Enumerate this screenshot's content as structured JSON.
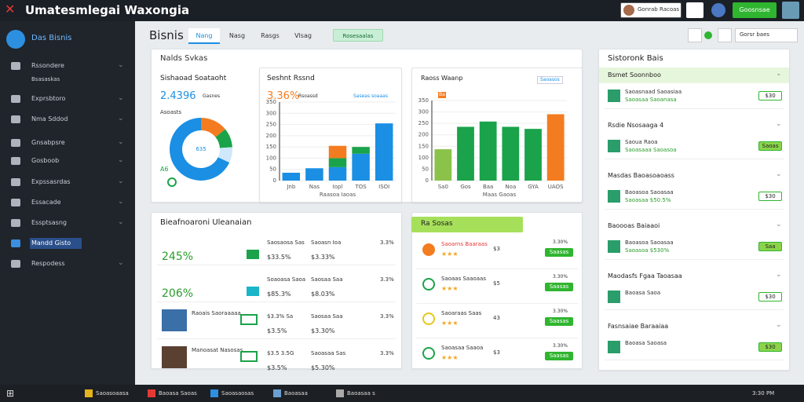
{
  "topbar": {
    "title": "Umatesmlegai Waxongia",
    "user": "Gonrab Racoas",
    "button": "Goosnsae"
  },
  "sidebar": {
    "brand": "Das Bisnis",
    "items": [
      "Rssondere",
      "Bsasaskas",
      "Exprsbtoro",
      "Nma Sddod",
      "Gnsabpsre",
      "Gosboob",
      "Expssasrdas",
      "Essacade",
      "Essptsasng",
      "Mandd Gisto",
      "Respodess"
    ],
    "active": 9
  },
  "header": {
    "title": "Bisnis",
    "tabs": [
      "Nang",
      "Nasg",
      "Rasgs",
      "Vlsag"
    ],
    "filter": "Rosesaalas",
    "search": "Gorsr baes"
  },
  "overview": {
    "title": "Nalds Svkas",
    "donut": {
      "title": "Sishaoad Soataoht",
      "value": "2.4396",
      "sub": "Gasnes",
      "label": "Asoasts",
      "center": "635",
      "corner": "A6",
      "values": [
        68,
        14,
        10,
        8
      ],
      "colors": [
        "#1a8fe3",
        "#f47c20",
        "#1aa34a",
        "#cfe8fb"
      ]
    },
    "bars": {
      "type": "bar",
      "title": "Seshnt Rssnd",
      "value": "3.36%",
      "sub": "Rsoassd",
      "link": "Saseas soaaas",
      "categories": [
        "Jnb",
        "Nas",
        "Iopl",
        "TOS",
        "ISOI"
      ],
      "xlabel": "Raasoa Iaoas",
      "series": [
        {
          "color": "#1a8fe3",
          "values": [
            35,
            55,
            60,
            120,
            255
          ]
        },
        {
          "color": "#1aa34a",
          "values": [
            0,
            0,
            40,
            30,
            0
          ]
        },
        {
          "color": "#f47c20",
          "values": [
            0,
            0,
            55,
            0,
            0
          ]
        }
      ],
      "ylim": [
        0,
        350
      ],
      "yticks": [
        0,
        50,
        100,
        150,
        200,
        250,
        300,
        350
      ]
    },
    "bars2": {
      "type": "bar",
      "title": "Raoss Waanp",
      "link": "Saoasos",
      "tag": "Ba",
      "categories": [
        "Sa0",
        "Gos",
        "Baa",
        "Noa",
        "GYA",
        "UAOS"
      ],
      "xlabel": "Maas Gaoas",
      "values": [
        137,
        235,
        258,
        235,
        226,
        290
      ],
      "colors": [
        "#8bc34a",
        "#1aa34a",
        "#1aa34a",
        "#1aa34a",
        "#1aa34a",
        "#f47c20"
      ],
      "ylim": [
        0,
        350
      ],
      "yticks": [
        0,
        50,
        100,
        150,
        200,
        250,
        300,
        350
      ]
    }
  },
  "metrics": {
    "title": "Bieafnoaroni Uleanaian",
    "rows": [
      {
        "big": "245%",
        "a": "Saosaosa Sas",
        "b": "$33.5%",
        "c": "Saoasn Ioa",
        "d": "$3.33%",
        "e": "3.3%"
      },
      {
        "big": "206%",
        "a": "Soaoasa Saoa",
        "b": "$85.3%",
        "c": "Saosaa Saa",
        "d": "$8.03%",
        "e": "3.3%"
      },
      {
        "name": "Raoais Saoraaaaa",
        "a": "$3.3% Sa",
        "b": "$3.5%",
        "c": "Saosaa Saa",
        "d": "$3.30%",
        "e": "3.3%"
      },
      {
        "name": "Manoasat Nasosas",
        "a": "$3.5 3.5G",
        "b": "$3.5%",
        "c": "Saoasaa Sas",
        "d": "$5.30%",
        "e": "3.3%"
      }
    ]
  },
  "ratings": {
    "title": "Ra Sosas",
    "rows": [
      {
        "title": "Saoarns Baaraas",
        "num": "$3",
        "btn": "Saasas",
        "tag": "3.30%"
      },
      {
        "title": "Saoaas Saaoaas",
        "num": "$5",
        "btn": "Saasas",
        "tag": "3.30%"
      },
      {
        "title": "Saoaraas Saas",
        "num": "43",
        "btn": "Saasas",
        "tag": "3.30%"
      },
      {
        "title": "Saoasaa Saaoa",
        "num": "$3",
        "btn": "Saasas",
        "tag": "3.30%"
      }
    ]
  },
  "right": {
    "title": "Sistoronk Bais",
    "sections": [
      {
        "head": "Bsmet Soonnboo",
        "rows": [
          {
            "t": "Saoasnaad Saoasiaa",
            "s": "Saoasaa Saoanasa",
            "v": "$30"
          }
        ]
      },
      {
        "head": "Rsdie Nsosaaga 4",
        "rows": [
          {
            "t": "Saoua Raoa",
            "s": "Saoasaaa Saoasoa",
            "v": "Saoas"
          }
        ]
      },
      {
        "head": "Masdas Baoasoaoass",
        "rows": [
          {
            "t": "Baoasoa Saoasaa",
            "s": "Saoasaa $50.5%",
            "v": "$30"
          }
        ]
      },
      {
        "head": "Baoooas Baiaaoi",
        "rows": [
          {
            "t": "Baoasoa Saoasaa",
            "s": "Saoasoa $530%",
            "v": "Saa"
          }
        ]
      },
      {
        "head": "Maodasfs Fgaa Taoasaa",
        "rows": [
          {
            "t": "Baoasa Saoa",
            "s": "",
            "v": "$30"
          }
        ]
      },
      {
        "head": "Fasnsaiae Baraaiaa",
        "rows": [
          {
            "t": "Baoasa Saoasa",
            "s": "",
            "v": "$30"
          }
        ]
      }
    ]
  },
  "taskbar": {
    "items": [
      "Saoasoaasa",
      "Baoasa Saoas",
      "Saoasaosas",
      "Baoasaa",
      "Baoasaa s"
    ],
    "clock": "3:30 PM"
  }
}
